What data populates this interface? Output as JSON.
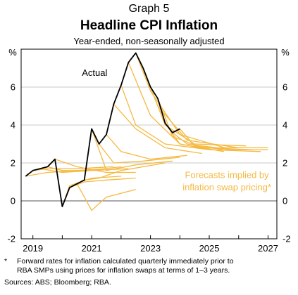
{
  "header": {
    "graph_label": "Graph 5",
    "title": "Headline CPI Inflation",
    "subtitle": "Year-ended, non-seasonally adjusted"
  },
  "footer": {
    "note_marker": "*",
    "note_text_1": "Forward rates for inflation calculated quarterly immediately prior to",
    "note_text_2": "RBA SMPs using prices for inflation swaps at terms of 1–3 years.",
    "sources": "Sources: ABS; Bloomberg; RBA."
  },
  "colors": {
    "actual": "#000000",
    "forecast": "#f5b942",
    "grid": "#c8c8c8",
    "axis": "#000000"
  },
  "chart_data": {
    "type": "line",
    "y_unit_label": "%",
    "xlim": [
      2018.6,
      2027.3
    ],
    "ylim": [
      -2,
      8
    ],
    "y_ticks": [
      -2,
      0,
      2,
      4,
      6
    ],
    "x_ticks": [
      2019,
      2021,
      2023,
      2025,
      2027
    ],
    "x_tick_labels": [
      "2019",
      "2021",
      "2023",
      "2025",
      "2027"
    ],
    "annotations": {
      "actual": "Actual",
      "forecast_line1": "Forecasts implied by",
      "forecast_line2": "inflation swap pricing*"
    },
    "actual": {
      "x": [
        2018.75,
        2019.0,
        2019.25,
        2019.5,
        2019.75,
        2020.0,
        2020.25,
        2020.5,
        2020.75,
        2021.0,
        2021.25,
        2021.5,
        2021.75,
        2022.0,
        2022.25,
        2022.5,
        2022.75,
        2023.0,
        2023.25,
        2023.5,
        2023.75,
        2024.0
      ],
      "y": [
        1.3,
        1.6,
        1.7,
        1.8,
        2.2,
        -0.3,
        0.7,
        0.9,
        1.1,
        3.8,
        3.0,
        3.5,
        5.1,
        6.1,
        7.3,
        7.8,
        7.0,
        6.0,
        5.4,
        4.1,
        3.6,
        3.8
      ]
    },
    "forecasts": [
      {
        "x": [
          2018.75,
          2019.5,
          2020.5,
          2021.5
        ],
        "y": [
          1.3,
          1.5,
          1.6,
          1.7
        ]
      },
      {
        "x": [
          2019.0,
          2019.5,
          2020.5,
          2021.75
        ],
        "y": [
          1.6,
          1.7,
          1.7,
          1.8
        ]
      },
      {
        "x": [
          2019.25,
          2020.0,
          2021.0,
          2022.0
        ],
        "y": [
          1.7,
          1.5,
          1.6,
          1.8
        ]
      },
      {
        "x": [
          2019.5,
          2020.0,
          2021.0,
          2022.25
        ],
        "y": [
          1.8,
          1.6,
          1.6,
          1.7
        ]
      },
      {
        "x": [
          2019.75,
          2020.5,
          2021.5,
          2022.5
        ],
        "y": [
          2.2,
          1.8,
          1.5,
          1.5
        ]
      },
      {
        "x": [
          2020.0,
          2020.25,
          2021.0,
          2022.0
        ],
        "y": [
          -0.3,
          0.8,
          1.2,
          1.3
        ]
      },
      {
        "x": [
          2020.25,
          2020.75,
          2021.5,
          2022.5
        ],
        "y": [
          0.7,
          1.0,
          1.1,
          1.2
        ]
      },
      {
        "x": [
          2020.5,
          2021.0,
          2021.5,
          2022.5
        ],
        "y": [
          0.9,
          -0.5,
          0.2,
          0.6
        ]
      },
      {
        "x": [
          2020.75,
          2021.25,
          2022.0,
          2023.5
        ],
        "y": [
          1.1,
          1.2,
          1.6,
          2.0
        ]
      },
      {
        "x": [
          2021.0,
          2021.5,
          2022.5,
          2023.75
        ],
        "y": [
          3.8,
          1.6,
          1.9,
          2.1
        ]
      },
      {
        "x": [
          2021.25,
          2021.75,
          2022.75,
          2024.0
        ],
        "y": [
          3.0,
          2.0,
          2.1,
          2.3
        ]
      },
      {
        "x": [
          2021.5,
          2022.0,
          2023.0,
          2024.25
        ],
        "y": [
          3.5,
          2.6,
          2.2,
          2.4
        ]
      },
      {
        "x": [
          2021.75,
          2022.5,
          2023.5,
          2024.75
        ],
        "y": [
          5.1,
          3.8,
          2.8,
          2.5
        ]
      },
      {
        "x": [
          2022.0,
          2022.5,
          2023.5,
          2025.0
        ],
        "y": [
          6.1,
          4.0,
          3.0,
          2.7
        ]
      },
      {
        "x": [
          2022.25,
          2023.0,
          2024.0,
          2025.5
        ],
        "y": [
          7.3,
          4.5,
          3.0,
          2.6
        ]
      },
      {
        "x": [
          2022.5,
          2023.0,
          2024.0,
          2025.75
        ],
        "y": [
          7.8,
          5.8,
          3.5,
          2.7
        ]
      },
      {
        "x": [
          2022.75,
          2023.25,
          2024.25,
          2026.0
        ],
        "y": [
          7.0,
          5.0,
          3.2,
          2.8
        ]
      },
      {
        "x": [
          2023.0,
          2023.5,
          2024.5,
          2026.25
        ],
        "y": [
          6.0,
          4.0,
          3.0,
          2.9
        ]
      },
      {
        "x": [
          2023.25,
          2023.75,
          2024.75,
          2026.5
        ],
        "y": [
          5.4,
          3.4,
          2.8,
          2.7
        ]
      },
      {
        "x": [
          2023.5,
          2024.0,
          2025.0,
          2026.75
        ],
        "y": [
          4.1,
          3.0,
          2.7,
          2.6
        ]
      },
      {
        "x": [
          2023.75,
          2024.25,
          2025.25,
          2027.0
        ],
        "y": [
          3.6,
          3.0,
          2.8,
          2.8
        ]
      },
      {
        "x": [
          2024.0,
          2024.5,
          2025.5,
          2027.0
        ],
        "y": [
          3.8,
          2.9,
          2.7,
          2.7
        ]
      }
    ]
  }
}
